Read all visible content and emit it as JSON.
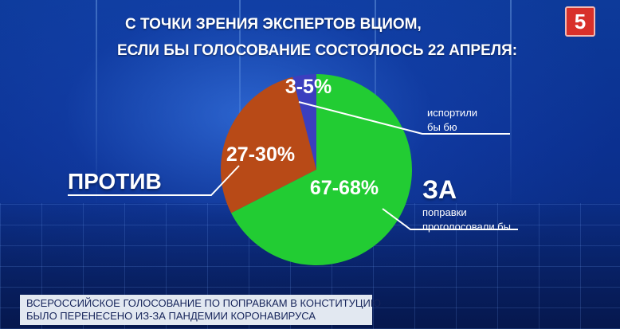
{
  "channel_logo": "5",
  "title": [
    "С ТОЧКИ ЗРЕНИЯ ЭКСПЕРТОВ ВЦИОМ,",
    "ЕСЛИ БЫ ГОЛОСОВАНИЕ СОСТОЯЛОСЬ 22 АПРЕЛЯ:"
  ],
  "against_label": "ПРОТИВ",
  "for_label": "ЗА",
  "for_sublabel": [
    "поправки",
    "проголосовали бы"
  ],
  "spoiled_label": [
    "испортили",
    "бы бю"
  ],
  "caption": [
    "ВСЕРОССИЙСКОЕ ГОЛОСОВАНИЕ ПО ПОПРАВКАМ В КОНСТИТУЦИЮ",
    "БЫЛО ПЕРЕНЕСЕНО ИЗ-ЗА ПАНДЕМИИ КОРОНАВИРУСА"
  ],
  "chart_data": {
    "type": "pie",
    "slices": [
      {
        "name": "ЗА",
        "label": "67-68%",
        "value": 67.5,
        "color": "#22cc33"
      },
      {
        "name": "ПРОТИВ",
        "label": "27-30%",
        "value": 28.5,
        "color": "#b84a17"
      },
      {
        "name": "испортили бы бю",
        "label": "3-5%",
        "value": 4,
        "color": "#3b3fbf"
      }
    ],
    "start": "12 o'clock",
    "direction": "clockwise"
  }
}
